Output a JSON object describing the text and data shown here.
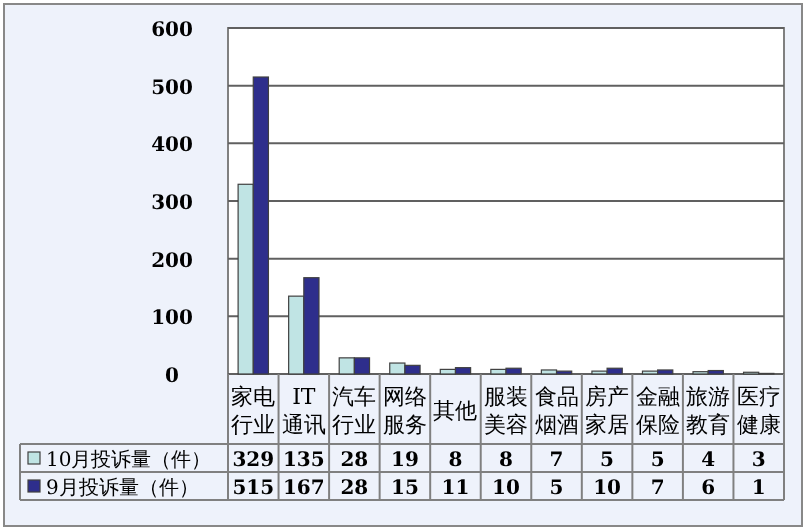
{
  "chart_data": {
    "type": "bar",
    "categories": [
      "家电行业",
      "IT通讯",
      "汽车行业",
      "网络服务",
      "其他",
      "服装美容",
      "食品烟酒",
      "房产家居",
      "金融保险",
      "旅游教育",
      "医疗健康"
    ],
    "series": [
      {
        "name": "10月投诉量（件）",
        "color": "#c0e4e4",
        "values": [
          329,
          135,
          28,
          19,
          8,
          8,
          7,
          5,
          5,
          4,
          3
        ]
      },
      {
        "name": "9月投诉量（件）",
        "color": "#2e2e8c",
        "values": [
          515,
          167,
          28,
          15,
          11,
          10,
          5,
          10,
          7,
          6,
          1
        ]
      }
    ],
    "ylim": [
      0,
      600
    ],
    "yticks": [
      0,
      100,
      200,
      300,
      400,
      500,
      600
    ],
    "grid": "y",
    "data_labels": true,
    "legend": "bottom"
  }
}
